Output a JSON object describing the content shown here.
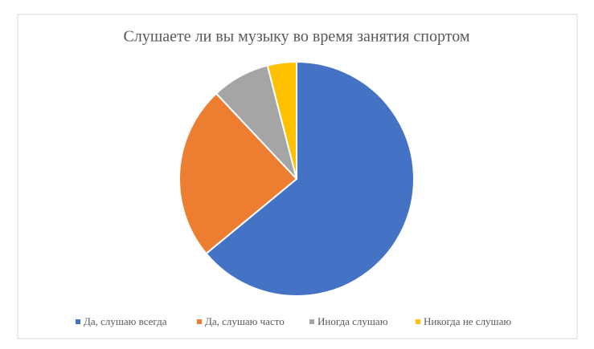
{
  "chart_data": {
    "type": "pie",
    "title": "Слушаете ли вы музыку во время занятия спортом",
    "categories": [
      "Да, слушаю всегда",
      "Да, слушаю часто",
      "Иногда слушаю",
      "Никогда не слушаю"
    ],
    "values": [
      64,
      24,
      8,
      4
    ],
    "colors": [
      "#4472c4",
      "#ed7d31",
      "#a5a5a5",
      "#ffc000"
    ],
    "legend": "bottom"
  }
}
